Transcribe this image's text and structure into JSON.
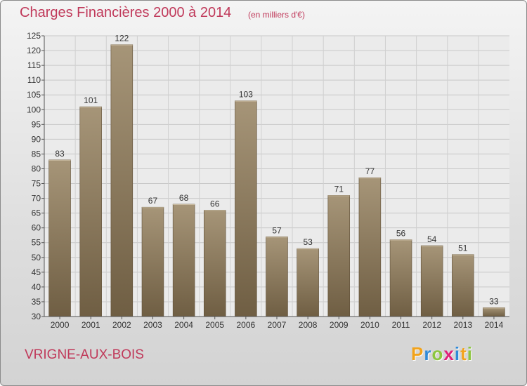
{
  "header": {
    "title": "Charges Financières 2000 à 2014",
    "subtitle": "(en milliers d'€)"
  },
  "footer": {
    "commune": "VRIGNE-AUX-BOIS",
    "logo_letters": [
      "P",
      "r",
      "o",
      "x",
      "i",
      "t",
      "i"
    ],
    "logo_colors": [
      "#f2a31b",
      "#2f8ad8",
      "#8cc63f",
      "#e0207a",
      "#2f8ad8",
      "#f2a31b",
      "#8cc63f"
    ]
  },
  "colors": {
    "title": "#c0395a",
    "bar_top": "#a69578",
    "bar_bottom": "#6f5e43",
    "plot_bg": "#ebebeb"
  },
  "chart_data": {
    "type": "bar",
    "title": "Charges Financières 2000 à 2014",
    "subtitle": "(en milliers d'€)",
    "categories": [
      "2000",
      "2001",
      "2002",
      "2003",
      "2004",
      "2005",
      "2006",
      "2007",
      "2008",
      "2009",
      "2010",
      "2011",
      "2012",
      "2013",
      "2014"
    ],
    "values": [
      83,
      101,
      122,
      67,
      68,
      66,
      103,
      57,
      53,
      71,
      77,
      56,
      54,
      51,
      33
    ],
    "ylim": [
      30,
      125
    ],
    "yticks": [
      30,
      35,
      40,
      45,
      50,
      55,
      60,
      65,
      70,
      75,
      80,
      85,
      90,
      95,
      100,
      105,
      110,
      115,
      120,
      125
    ],
    "grid": true,
    "data_labels": true
  }
}
